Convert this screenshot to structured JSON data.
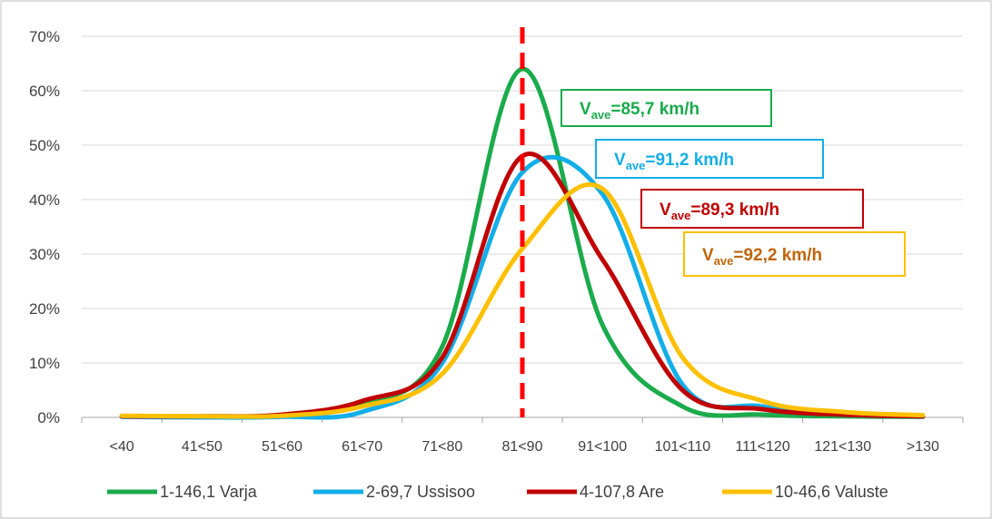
{
  "chart_data": {
    "type": "line",
    "title": "",
    "xlabel": "",
    "ylabel": "",
    "categories": [
      "<40",
      "41<50",
      "51<60",
      "61<70",
      "71<80",
      "81<90",
      "91<100",
      "101<110",
      "111<120",
      "121<130",
      ">130"
    ],
    "ylim": [
      0,
      70
    ],
    "yticks": [
      "0%",
      "10%",
      "20%",
      "30%",
      "40%",
      "50%",
      "60%",
      "70%"
    ],
    "grid": "horizontal",
    "legend_position": "bottom",
    "series": [
      {
        "name": "1-146,1 Varja",
        "color": "#1aab4b",
        "values": [
          0.2,
          0.1,
          0.3,
          2.5,
          13,
          64,
          17,
          2,
          0.5,
          0.2,
          0.1
        ]
      },
      {
        "name": "2-69,7 Ussisoo",
        "color": "#13aee8",
        "values": [
          0.1,
          0,
          0.1,
          1,
          10,
          45,
          41,
          6,
          2,
          0.5,
          0.2
        ]
      },
      {
        "name": "4-107,8 Are",
        "color": "#c00000",
        "values": [
          0.2,
          0.2,
          0.5,
          3,
          11,
          48,
          29,
          5,
          1.5,
          0.5,
          0.2
        ]
      },
      {
        "name": "10-46,6 Valuste",
        "color": "#ffc000",
        "values": [
          0.3,
          0.2,
          0.3,
          2,
          8,
          31,
          42,
          11,
          3,
          1,
          0.4
        ]
      }
    ],
    "reference_line": {
      "x_category_position": 5.5,
      "color": "#ff0000",
      "style": "dashed"
    },
    "annotations": [
      {
        "main": "V",
        "sub": "ave",
        "value": "=85,7 km/h",
        "color": "#1aab4b"
      },
      {
        "main": "V",
        "sub": "ave",
        "value": "=91,2 km/h",
        "color": "#13aee8"
      },
      {
        "main": "V",
        "sub": "ave",
        "value": "=89,3 km/h",
        "color": "#c00000"
      },
      {
        "main": "V",
        "sub": "ave",
        "value": "=92,2 km/h",
        "color": "#c0650a"
      }
    ]
  }
}
